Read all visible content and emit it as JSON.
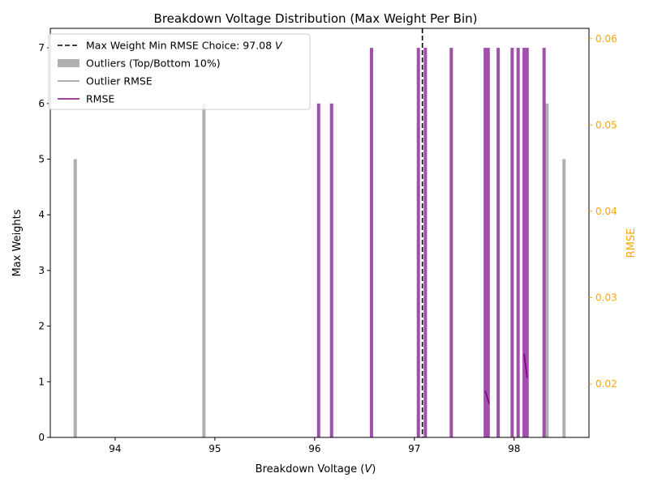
{
  "chart_data": {
    "type": "bar",
    "title": "Breakdown Voltage Distribution (Max Weight Per Bin)",
    "xlabel": "Breakdown Voltage (V)",
    "ylabel": "Max Weights",
    "y2label": "RMSE",
    "xlim": [
      93.35,
      98.75
    ],
    "ylim": [
      0,
      7.35
    ],
    "y2lim": [
      0.0138,
      0.0612
    ],
    "xticks": [
      94,
      95,
      96,
      97,
      98
    ],
    "yticks": [
      0,
      1,
      2,
      3,
      4,
      5,
      6,
      7
    ],
    "y2ticks": [
      0.02,
      0.03,
      0.04,
      0.05,
      0.06
    ],
    "y2ticks_labels": [
      "0.02",
      "0.03",
      "0.04",
      "0.05",
      "0.06"
    ],
    "legend_position": "upper-left",
    "colors": {
      "outlier": "#b0b0b0",
      "bar": "#a050aa",
      "rmse": "#800080",
      "outlier_rmse": "#999999",
      "right_axis": "orange",
      "choice_line": "#000000"
    },
    "choice": {
      "label": "Max Weight Min RMSE Choice: 97.08 V",
      "value": 97.08
    },
    "legend": [
      {
        "label": "Max Weight Min RMSE Choice: 97.08 V",
        "kind": "dashed"
      },
      {
        "label": "Outliers (Top/Bottom 10%)",
        "kind": "patch-outlier"
      },
      {
        "label": "Outlier RMSE",
        "kind": "line-outlier"
      },
      {
        "label": "RMSE",
        "kind": "line-rmse"
      }
    ],
    "outlier_bars": [
      {
        "x": 93.6,
        "value": 5
      },
      {
        "x": 94.89,
        "value": 6
      },
      {
        "x": 98.33,
        "value": 6
      },
      {
        "x": 98.5,
        "value": 5
      }
    ],
    "bars": [
      {
        "x": 96.04,
        "value": 6
      },
      {
        "x": 96.17,
        "value": 6
      },
      {
        "x": 96.57,
        "value": 7
      },
      {
        "x": 97.04,
        "value": 7
      },
      {
        "x": 97.11,
        "value": 7
      },
      {
        "x": 97.37,
        "value": 7
      },
      {
        "x": 97.71,
        "value": 7
      },
      {
        "x": 97.74,
        "value": 7
      },
      {
        "x": 97.84,
        "value": 7
      },
      {
        "x": 97.98,
        "value": 7
      },
      {
        "x": 98.04,
        "value": 7
      },
      {
        "x": 98.1,
        "value": 7
      },
      {
        "x": 98.13,
        "value": 7
      },
      {
        "x": 98.3,
        "value": 7
      }
    ],
    "rmse_segments": [
      [
        {
          "x": 97.71,
          "y": 0.0192
        },
        {
          "x": 97.75,
          "y": 0.0177
        }
      ],
      [
        {
          "x": 98.1,
          "y": 0.0235
        },
        {
          "x": 98.13,
          "y": 0.0207
        }
      ]
    ]
  }
}
